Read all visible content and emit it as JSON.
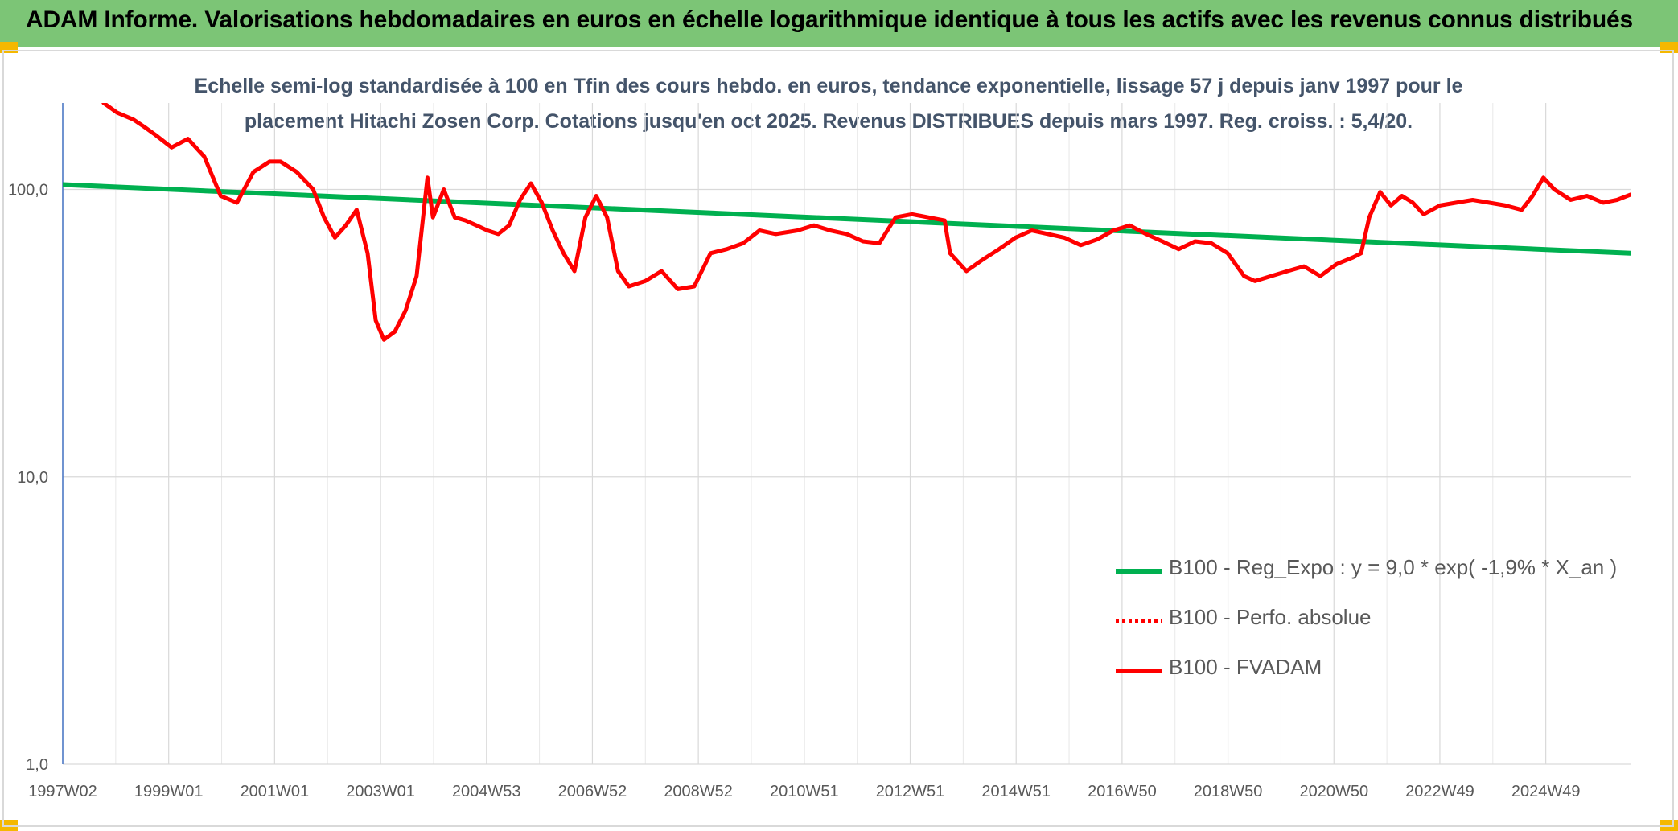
{
  "header": {
    "title": "ADAM Informe. Valorisations hebdomadaires en euros en échelle logarithmique identique à tous les actifs avec les revenus connus distribués"
  },
  "colors": {
    "header_bg": "#7cc576",
    "corner": "#f5b800",
    "fvadam": "#ff0000",
    "regression": "#00b050",
    "perf": "#ff0000",
    "title_text": "#44546a",
    "axis_text": "#595959",
    "grid": "#d9d9d9"
  },
  "chart_data": {
    "type": "line",
    "title_lines": [
      "Echelle semi-log standardisée à 100 en Tfin des cours hebdo. en euros, tendance exponentielle, lissage 57 j depuis janv 1997 pour le",
      "placement Hitachi Zosen Corp. Cotations jusqu'en oct 2025. Revenus DISTRIBUES depuis mars 1997. Reg. croiss. : 5,4/20."
    ],
    "y_scale": "log",
    "ylim": [
      1,
      200
    ],
    "y_ticks": [
      {
        "value": 1,
        "label": "1,0"
      },
      {
        "value": 10,
        "label": "10,0"
      },
      {
        "value": 100,
        "label": "100,0"
      }
    ],
    "x_ticks": [
      "1997W02",
      "1999W01",
      "2001W01",
      "2003W01",
      "2004W53",
      "2006W52",
      "2008W52",
      "2010W51",
      "2012W51",
      "2014W51",
      "2016W50",
      "2018W50",
      "2020W50",
      "2022W49",
      "2024W49"
    ],
    "xlim": [
      1997.0,
      2025.8
    ],
    "grid": true,
    "legend_position": "bottom-right",
    "series": [
      {
        "name": "B100 - Reg_Expo : y = 9,0 * exp( -1,9% *  X_an )",
        "style": "solid-green",
        "x": [
          1997.0,
          2025.8
        ],
        "y": [
          104,
          60
        ]
      },
      {
        "name": "B100 - Perfo. absolue",
        "style": "dotted-red",
        "x": [],
        "y": []
      },
      {
        "name": "B100 - FVADAM",
        "style": "solid-red",
        "x": [
          1997.75,
          1998.0,
          1998.3,
          1998.5,
          1998.7,
          1999.0,
          1999.3,
          1999.6,
          1999.9,
          2000.2,
          2000.5,
          2000.8,
          2001.0,
          2001.3,
          2001.6,
          2001.8,
          2002.0,
          2002.2,
          2002.4,
          2002.6,
          2002.75,
          2002.9,
          2003.1,
          2003.3,
          2003.5,
          2003.7,
          2003.8,
          2004.0,
          2004.2,
          2004.4,
          2004.6,
          2004.8,
          2005.0,
          2005.2,
          2005.4,
          2005.6,
          2005.8,
          2006.0,
          2006.2,
          2006.4,
          2006.6,
          2006.8,
          2007.0,
          2007.2,
          2007.4,
          2007.7,
          2008.0,
          2008.3,
          2008.6,
          2008.9,
          2009.2,
          2009.5,
          2009.8,
          2010.1,
          2010.5,
          2010.8,
          2011.1,
          2011.4,
          2011.7,
          2012.0,
          2012.3,
          2012.6,
          2012.9,
          2013.2,
          2013.3,
          2013.6,
          2013.9,
          2014.2,
          2014.5,
          2014.8,
          2015.1,
          2015.4,
          2015.7,
          2016.0,
          2016.3,
          2016.6,
          2016.9,
          2017.2,
          2017.5,
          2017.8,
          2018.1,
          2018.4,
          2018.7,
          2018.9,
          2019.2,
          2019.5,
          2019.8,
          2020.1,
          2020.4,
          2020.7,
          2020.85,
          2021.0,
          2021.2,
          2021.4,
          2021.6,
          2021.8,
          2022.0,
          2022.3,
          2022.6,
          2022.9,
          2023.2,
          2023.5,
          2023.8,
          2024.0,
          2024.2,
          2024.4,
          2024.7,
          2025.0,
          2025.3,
          2025.55,
          2025.8
        ],
        "y": [
          200,
          185,
          175,
          165,
          155,
          140,
          150,
          130,
          95,
          90,
          115,
          125,
          125,
          115,
          100,
          80,
          68,
          75,
          85,
          60,
          35,
          30,
          32,
          38,
          50,
          110,
          80,
          100,
          80,
          78,
          75,
          72,
          70,
          75,
          92,
          105,
          90,
          72,
          60,
          52,
          80,
          95,
          80,
          52,
          46,
          48,
          52,
          45,
          46,
          60,
          62,
          65,
          72,
          70,
          72,
          75,
          72,
          70,
          66,
          65,
          80,
          82,
          80,
          78,
          60,
          52,
          57,
          62,
          68,
          72,
          70,
          68,
          64,
          67,
          72,
          75,
          70,
          66,
          62,
          66,
          65,
          60,
          50,
          48,
          50,
          52,
          54,
          50,
          55,
          58,
          60,
          80,
          98,
          88,
          95,
          90,
          82,
          88,
          90,
          92,
          90,
          88,
          85,
          95,
          110,
          100,
          92,
          95,
          90,
          92,
          96
        ]
      }
    ]
  }
}
